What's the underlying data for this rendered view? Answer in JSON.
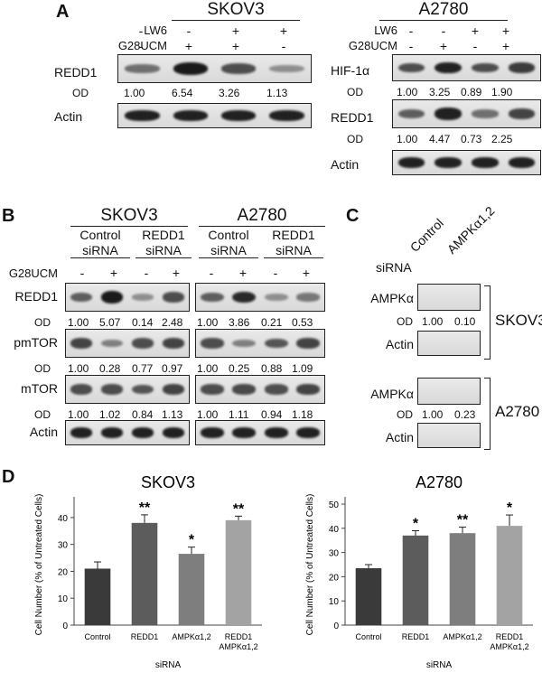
{
  "panelA": {
    "letter": "A",
    "skov": {
      "title": "SKOV3",
      "treatments": [
        {
          "name": "LW6",
          "signs": [
            "-",
            "-",
            "+",
            "+"
          ]
        },
        {
          "name": "G28UCM",
          "signs": [
            "-",
            "+",
            "+",
            "-"
          ]
        }
      ],
      "rows": [
        {
          "label": "REDD1",
          "od_label": "OD",
          "od": [
            "1.00",
            "6.54",
            "3.26",
            "1.13"
          ],
          "intensity": [
            0.5,
            1.0,
            0.7,
            0.3
          ]
        },
        {
          "label": "Actin",
          "intensity": [
            0.95,
            0.95,
            0.95,
            0.95
          ]
        }
      ]
    },
    "a2780": {
      "title": "A2780",
      "treatments": [
        {
          "name": "LW6",
          "signs": [
            "-",
            "-",
            "+",
            "+"
          ]
        },
        {
          "name": "G28UCM",
          "signs": [
            "-",
            "+",
            "-",
            "+"
          ]
        }
      ],
      "rows": [
        {
          "label": "HIF-1α",
          "od_label": "OD",
          "od": [
            "1.00",
            "3.25",
            "0.89",
            "1.90"
          ],
          "intensity": [
            0.7,
            0.95,
            0.7,
            0.8
          ]
        },
        {
          "label": "REDD1",
          "od_label": "OD",
          "od": [
            "1.00",
            "4.47",
            "0.73",
            "2.25"
          ],
          "intensity": [
            0.6,
            0.95,
            0.5,
            0.75
          ]
        },
        {
          "label": "Actin",
          "intensity": [
            0.95,
            0.95,
            0.95,
            0.95
          ]
        }
      ]
    }
  },
  "panelB": {
    "letter": "B",
    "cell_lines": [
      "SKOV3",
      "A2780"
    ],
    "groups": [
      {
        "line1": "Control",
        "line2": "siRNA"
      },
      {
        "line1": "REDD1",
        "line2": "siRNA"
      },
      {
        "line1": "Control",
        "line2": "siRNA"
      },
      {
        "line1": "REDD1",
        "line2": "siRNA"
      }
    ],
    "treatment": {
      "name": "G28UCM",
      "signs": [
        "-",
        "+",
        "-",
        "+",
        "-",
        "+",
        "-",
        "+"
      ]
    },
    "rows": [
      {
        "label": "REDD1",
        "od_label": "OD",
        "od": [
          "1.00",
          "5.07",
          "0.14",
          "2.48",
          "1.00",
          "3.86",
          "0.21",
          "0.53"
        ],
        "intensity": [
          0.6,
          1.0,
          0.3,
          0.7,
          0.6,
          0.9,
          0.3,
          0.45
        ]
      },
      {
        "label": "pmTOR",
        "od_label": "OD",
        "od": [
          "1.00",
          "0.28",
          "0.77",
          "0.97",
          "1.00",
          "0.25",
          "0.88",
          "1.09"
        ],
        "intensity": [
          0.75,
          0.4,
          0.7,
          0.75,
          0.7,
          0.4,
          0.65,
          0.75
        ]
      },
      {
        "label": "mTOR",
        "od_label": "OD",
        "od": [
          "1.00",
          "1.02",
          "0.84",
          "1.13",
          "1.00",
          "1.11",
          "0.94",
          "1.18"
        ],
        "intensity": [
          0.7,
          0.7,
          0.65,
          0.75,
          0.7,
          0.72,
          0.68,
          0.75
        ]
      },
      {
        "label": "Actin",
        "intensity": [
          0.95,
          0.95,
          0.95,
          0.95,
          0.95,
          0.95,
          0.95,
          0.95
        ]
      }
    ]
  },
  "panelC": {
    "letter": "C",
    "sirna_label": "siRNA",
    "columns": [
      "Control",
      "AMPKα1,2"
    ],
    "blocks": [
      {
        "cell_line": "SKOV3",
        "rows": [
          {
            "label": "AMPKα",
            "od_label": "OD",
            "od": [
              "1.00",
              "0.10"
            ],
            "intensity": [
              0.95,
              0.35
            ]
          },
          {
            "label": "Actin",
            "intensity": [
              0.95,
              0.95
            ]
          }
        ]
      },
      {
        "cell_line": "A2780",
        "rows": [
          {
            "label": "AMPKα",
            "od_label": "OD",
            "od": [
              "1.00",
              "0.23"
            ],
            "intensity": [
              0.9,
              0.4
            ]
          },
          {
            "label": "Actin",
            "intensity": [
              0.95,
              0.95
            ]
          }
        ]
      }
    ]
  },
  "panelD": {
    "letter": "D",
    "chart_data": [
      {
        "type": "bar",
        "title": "SKOV3",
        "categories": [
          "Control",
          "REDD1",
          "AMPKα1,2",
          "REDD1 AMPKα1,2"
        ],
        "category_lines": [
          [
            "Control"
          ],
          [
            "REDD1"
          ],
          [
            "AMPKα1,2"
          ],
          [
            "REDD1",
            "AMPKα1,2"
          ]
        ],
        "values": [
          21,
          38,
          26.5,
          39
        ],
        "errors": [
          2.5,
          3,
          2.5,
          1.5
        ],
        "significance": [
          "",
          "**",
          "*",
          "**"
        ],
        "bar_colors": [
          "#3a3a3a",
          "#5c5c5c",
          "#7e7e7e",
          "#a3a3a3"
        ],
        "xlabel": "siRNA",
        "ylabel": "Cell Number (% of Untreated Cells)",
        "ylim": [
          0,
          45
        ],
        "yticks": [
          0,
          10,
          20,
          30,
          40
        ]
      },
      {
        "type": "bar",
        "title": "A2780",
        "categories": [
          "Control",
          "REDD1",
          "AMPKα1,2",
          "REDD1 AMPKα1,2"
        ],
        "category_lines": [
          [
            "Control"
          ],
          [
            "REDD1"
          ],
          [
            "AMPKα1,2"
          ],
          [
            "REDD1",
            "AMPKα1,2"
          ]
        ],
        "values": [
          23.5,
          37,
          38,
          41
        ],
        "errors": [
          1.5,
          2,
          2.5,
          4.5
        ],
        "significance": [
          "",
          "*",
          "**",
          "*"
        ],
        "bar_colors": [
          "#3a3a3a",
          "#5c5c5c",
          "#7e7e7e",
          "#a3a3a3"
        ],
        "xlabel": "siRNA",
        "ylabel": "Cell Number (% of Untreated Cells)",
        "ylim": [
          0,
          50
        ],
        "yticks": [
          0,
          10,
          20,
          30,
          40,
          50
        ]
      }
    ]
  }
}
